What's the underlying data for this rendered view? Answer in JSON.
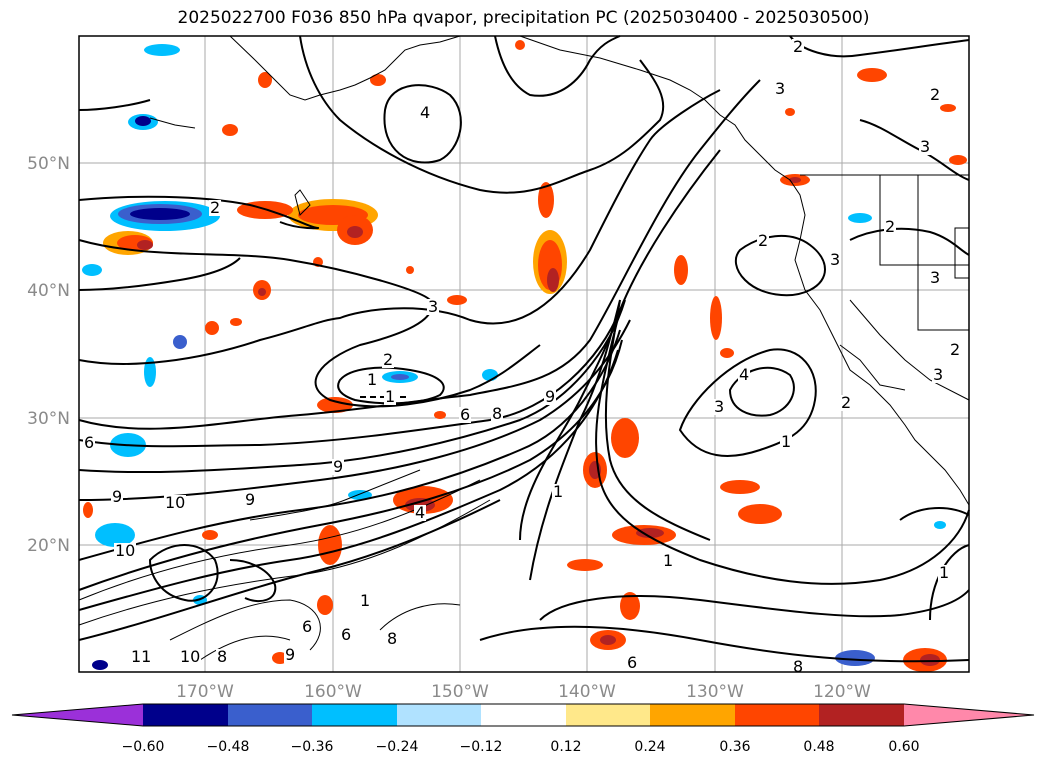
{
  "title": "2025022700 F036 850 hPa qvapor, precipitation PC (2025030400 - 2025030500)",
  "map": {
    "lat_ticks": [
      "50°N",
      "40°N",
      "30°N",
      "20°N"
    ],
    "lon_ticks": [
      "170°W",
      "160°W",
      "150°W",
      "140°W",
      "130°W",
      "120°W"
    ],
    "contour_labels": [
      {
        "text": "2"
      },
      {
        "text": "2"
      },
      {
        "text": "3"
      },
      {
        "text": "4"
      },
      {
        "text": "3"
      },
      {
        "text": "2"
      },
      {
        "text": "1"
      },
      {
        "text": "1"
      },
      {
        "text": "6"
      },
      {
        "text": "8"
      },
      {
        "text": "9"
      },
      {
        "text": "6"
      },
      {
        "text": "9"
      },
      {
        "text": "10"
      },
      {
        "text": "9"
      },
      {
        "text": "10"
      },
      {
        "text": "9"
      },
      {
        "text": "11"
      },
      {
        "text": "10"
      },
      {
        "text": "8"
      },
      {
        "text": "9"
      },
      {
        "text": "6"
      },
      {
        "text": "8"
      },
      {
        "text": "4"
      },
      {
        "text": "1"
      },
      {
        "text": "1"
      },
      {
        "text": "1"
      },
      {
        "text": "4"
      },
      {
        "text": "3"
      },
      {
        "text": "1"
      },
      {
        "text": "2"
      },
      {
        "text": "2"
      },
      {
        "text": "3"
      },
      {
        "text": "3"
      },
      {
        "text": "3"
      },
      {
        "text": "2"
      },
      {
        "text": "1"
      },
      {
        "text": "6"
      },
      {
        "text": "6"
      },
      {
        "text": "8"
      },
      {
        "text": "2"
      },
      {
        "text": "2"
      },
      {
        "text": "3"
      }
    ]
  },
  "colorbar": {
    "ticks": [
      "−0.60",
      "−0.48",
      "−0.36",
      "−0.24",
      "−0.12",
      "0.12",
      "0.24",
      "0.36",
      "0.48",
      "0.60"
    ],
    "colors": [
      "#9b30d9",
      "#00008b",
      "#3a5fcd",
      "#00bfff",
      "#b0e2ff",
      "#ffffff",
      "#ffe88a",
      "#ffa500",
      "#ff4500",
      "#b22222",
      "#ff88aa"
    ]
  },
  "colors": {
    "coast": "#000000",
    "grid": "#aaaaaa",
    "precip_pos_light": "#ffe88a",
    "precip_pos_orange": "#ffa500",
    "precip_pos_red": "#ff4500",
    "precip_pos_dark": "#b22222",
    "precip_neg_light": "#b0e2ff",
    "precip_neg_mid": "#00bfff",
    "precip_neg_blue": "#3a5fcd",
    "precip_neg_dark": "#00008b"
  }
}
